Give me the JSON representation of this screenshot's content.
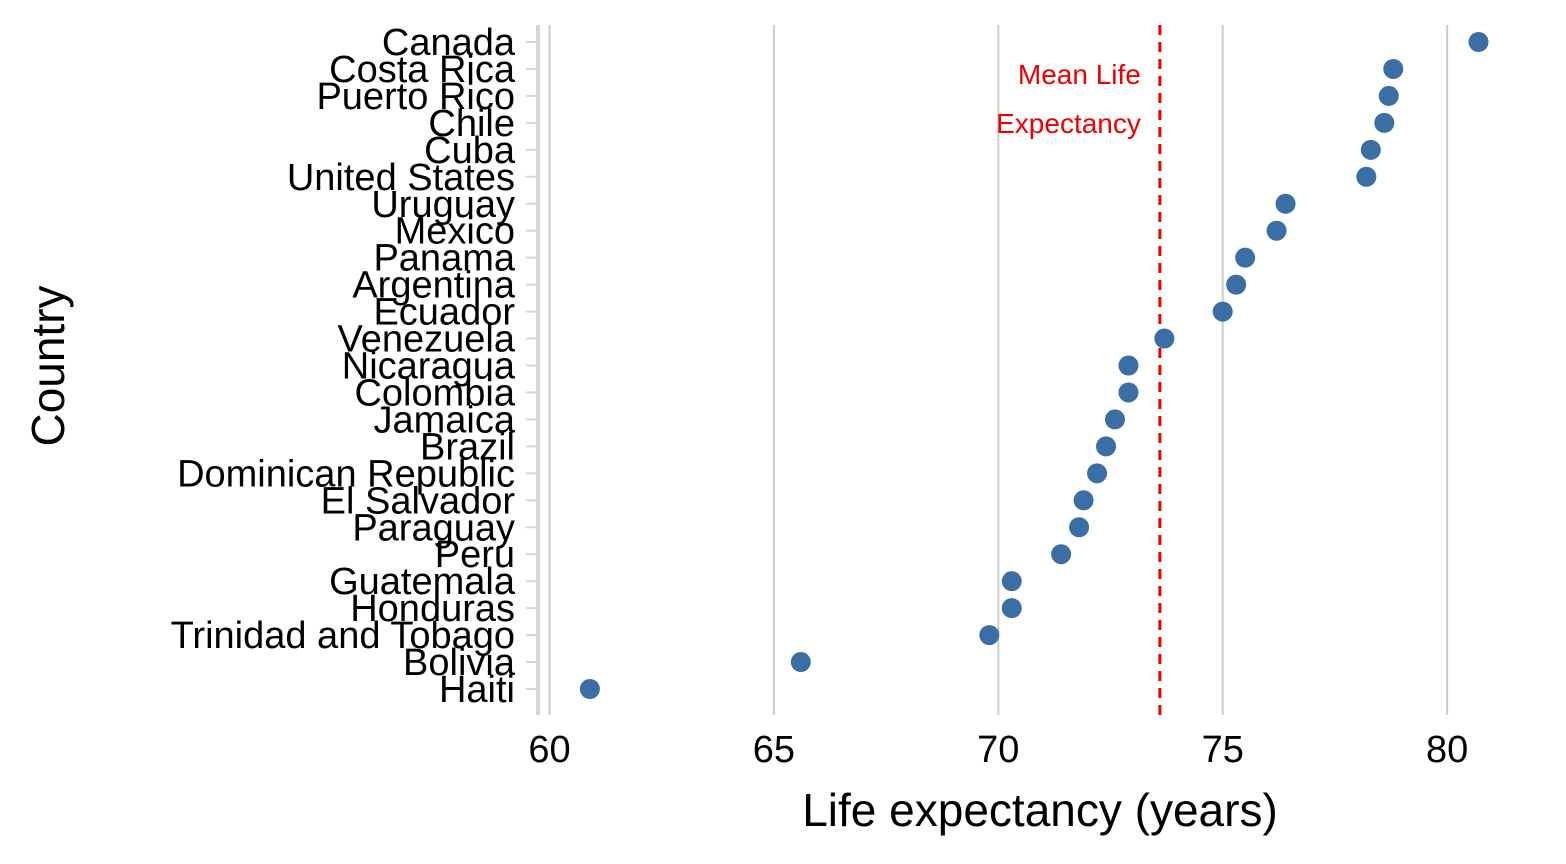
{
  "chart_data": {
    "type": "scatter",
    "xlabel": "Life expectancy (years)",
    "ylabel": "Country",
    "xlim": [
      59.9,
      81.0
    ],
    "x_ticks": [
      60,
      65,
      70,
      75,
      80
    ],
    "grid": {
      "vertical": true,
      "horizontal": false
    },
    "categories": [
      "Canada",
      "Costa Rica",
      "Puerto Rico",
      "Chile",
      "Cuba",
      "United States",
      "Uruguay",
      "Mexico",
      "Panama",
      "Argentina",
      "Ecuador",
      "Venezuela",
      "Nicaragua",
      "Colombia",
      "Jamaica",
      "Brazil",
      "Dominican Republic",
      "El Salvador",
      "Paraguay",
      "Peru",
      "Guatemala",
      "Honduras",
      "Trinidad and Tobago",
      "Bolivia",
      "Haiti"
    ],
    "values": [
      80.7,
      78.8,
      78.7,
      78.6,
      78.3,
      78.2,
      76.4,
      76.2,
      75.5,
      75.3,
      75.0,
      73.7,
      72.9,
      72.9,
      72.6,
      72.4,
      72.2,
      71.9,
      71.8,
      71.4,
      70.3,
      70.3,
      69.8,
      65.6,
      60.9
    ],
    "point_color": "#3a6ea5",
    "reference_line": {
      "value": 73.6,
      "color": "#ee0000",
      "style": "dashed",
      "label_lines": [
        "Mean Life",
        "Expectancy"
      ]
    }
  }
}
